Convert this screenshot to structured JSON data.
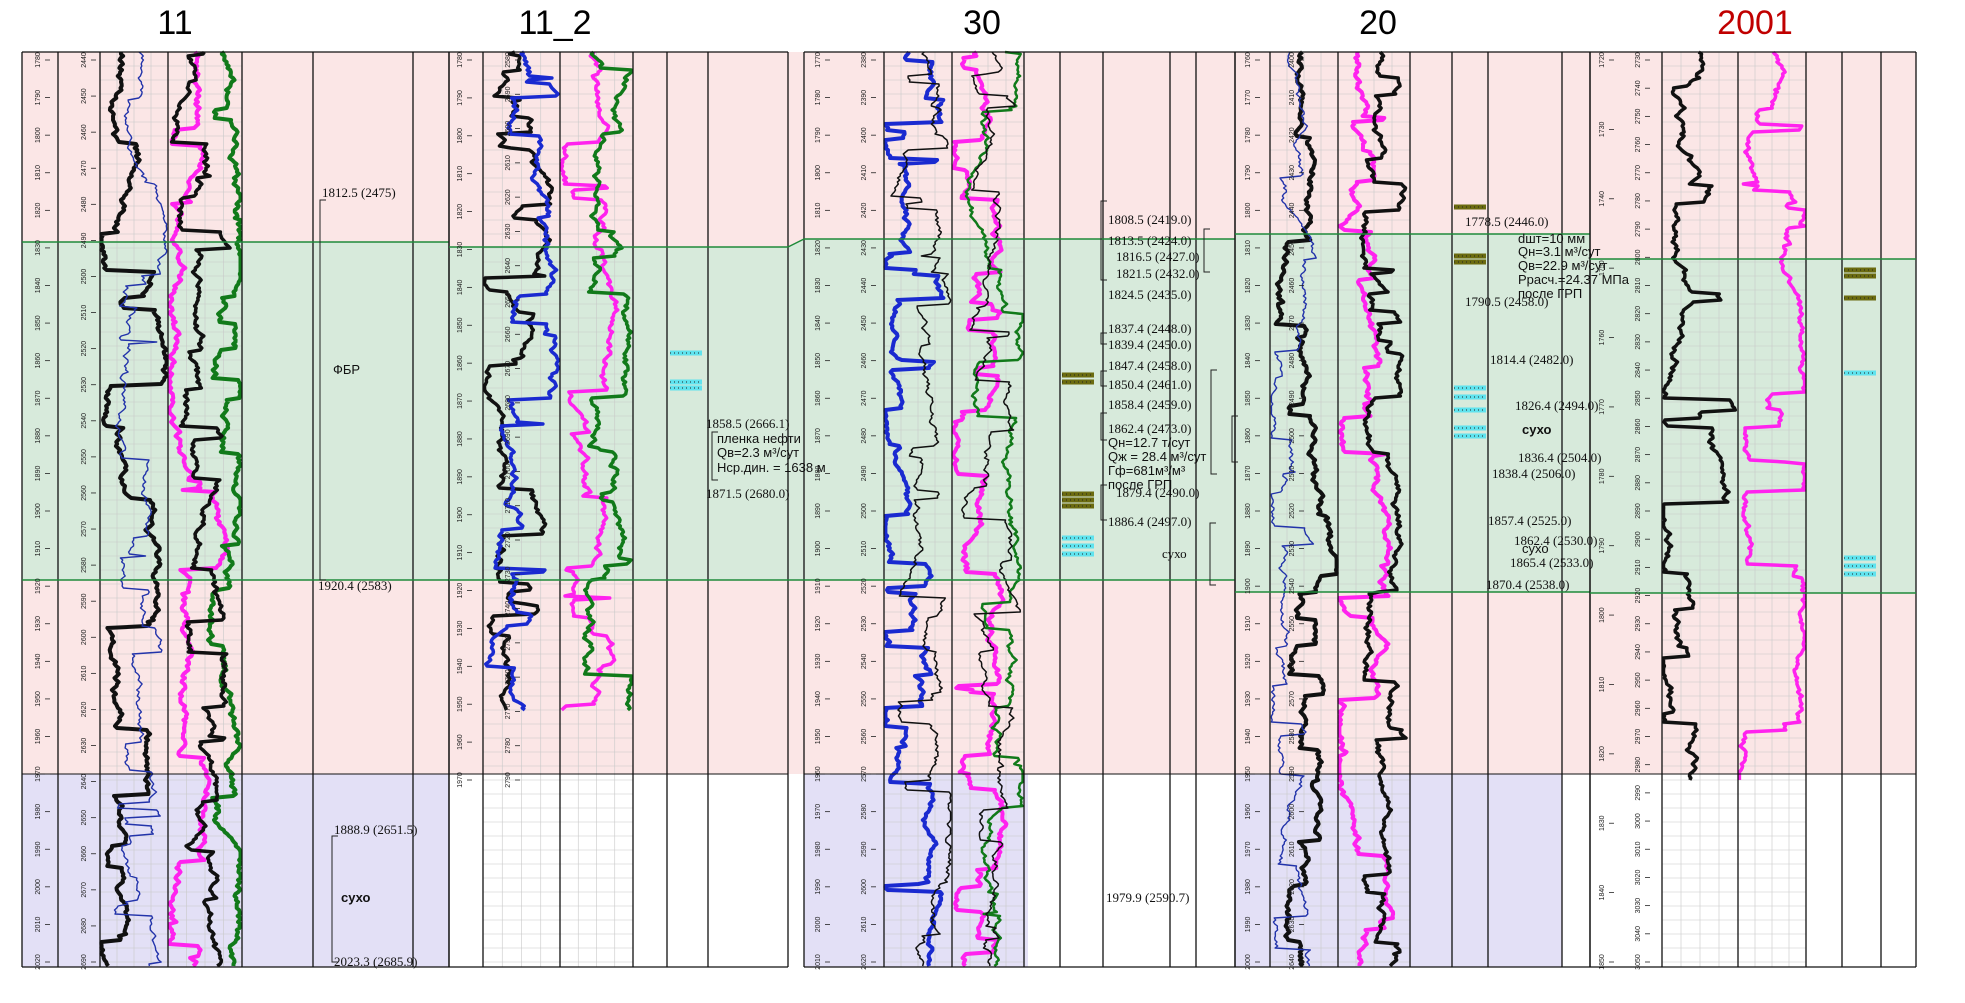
{
  "colors": {
    "upper_zone": "#fbe6e6",
    "reservoir_zone": "#d7eadb",
    "lower_zone": "#e3e0f6",
    "boundary": "#1f8a3a",
    "title_highlight": "#c00000",
    "perf_oil": "#6b6b10",
    "perf_water": "#5fe3ee"
  },
  "wells": [
    {
      "name": "11",
      "abs_ticks": [
        1780,
        1790,
        1800,
        1810,
        1820,
        1830,
        1840,
        1850,
        1860,
        1870,
        1880,
        1890,
        1900,
        1910,
        1920,
        1930,
        1940,
        1950,
        1960,
        1970,
        1980,
        1990,
        2000,
        2010,
        2020
      ],
      "md_ticks": [
        2440,
        2450,
        2460,
        2470,
        2480,
        2490,
        2500,
        2510,
        2520,
        2530,
        2540,
        2550,
        2560,
        2570,
        2580,
        2590,
        2600,
        2610,
        2620,
        2630,
        2640,
        2650,
        2660,
        2670,
        2680,
        2690
      ],
      "annotations": [
        "1812.5 (2475)",
        "ФБР",
        "1920.4 (2583)",
        "1888.9 (2651.5)",
        "сухо",
        "2023.3 (2685.9)"
      ]
    },
    {
      "name": "11_2",
      "abs_ticks": [
        1780,
        1790,
        1800,
        1810,
        1820,
        1830,
        1840,
        1850,
        1860,
        1870,
        1880,
        1890,
        1900,
        1910,
        1920,
        1930,
        1940,
        1950,
        1960,
        1970
      ],
      "md_ticks": [
        2580,
        2590,
        2600,
        2610,
        2620,
        2630,
        2640,
        2650,
        2660,
        2670,
        2680,
        2690,
        2700,
        2710,
        2720,
        2730,
        2740,
        2750,
        2760,
        2770,
        2780,
        2790
      ],
      "annotations": [
        "1858.5 (2666.1)",
        "пленка нефти",
        "Qв=2.3 м³/сут",
        "Нср.дин. = 1638 м",
        "1871.5 (2680.0)"
      ]
    },
    {
      "name": "30",
      "abs_ticks": [
        1770,
        1780,
        1790,
        1800,
        1810,
        1820,
        1830,
        1840,
        1850,
        1860,
        1870,
        1880,
        1890,
        1900,
        1910,
        1920,
        1930,
        1940,
        1950,
        1960,
        1970,
        1980,
        1990,
        2000,
        2010
      ],
      "md_ticks": [
        2380,
        2390,
        2400,
        2410,
        2420,
        2430,
        2440,
        2450,
        2460,
        2470,
        2480,
        2490,
        2500,
        2510,
        2520,
        2530,
        2540,
        2550,
        2560,
        2570,
        2580,
        2590,
        2600,
        2610,
        2620
      ],
      "annotations": [
        "1808.5 (2419.0)",
        "1813.5 (2424.0)",
        "1816.5 (2427.0)",
        "1821.5 (2432.0)",
        "1824.5 (2435.0)",
        "1837.4 (2448.0)",
        "1839.4 (2450.0)",
        "1847.4 (2458.0)",
        "1850.4 (2461.0)",
        "1858.4 (2459.0)",
        "1862.4 (2473.0)",
        "Qн=12.7 т/сут",
        "Qж = 28.4 м³/сут",
        "Гф=681м³/м³",
        "после ГРП",
        "1879.4 (2490.0)",
        "1886.4 (2497.0)",
        "сухо",
        "1979.9 (2590.7)"
      ]
    },
    {
      "name": "20",
      "abs_ticks": [
        1760,
        1770,
        1780,
        1790,
        1800,
        1810,
        1820,
        1830,
        1840,
        1850,
        1860,
        1870,
        1880,
        1890,
        1900,
        1910,
        1920,
        1930,
        1940,
        1950,
        1960,
        1970,
        1980,
        1990,
        2000
      ],
      "md_ticks": [
        2400,
        2410,
        2420,
        2430,
        2440,
        2450,
        2460,
        2470,
        2480,
        2490,
        2500,
        2510,
        2520,
        2530,
        2540,
        2550,
        2560,
        2570,
        2580,
        2590,
        2600,
        2610,
        2620,
        2630,
        2640
      ],
      "annotations": [
        "1778.5 (2446.0)",
        "dшт=10 мм",
        "Qн=3.1 м³/сут",
        "Qв=22.9 м³/сут",
        "Ррасч.=24.37 МПа",
        "после ГРП",
        "1790.5 (2458.0)",
        "1814.4 (2482.0)",
        "1826.4 (2494.0)",
        "сухо",
        "1836.4 (2504.0)",
        "1838.4 (2506.0)",
        "1857.4 (2525.0)",
        "1862.4 (2530.0)",
        "сухо",
        "1865.4 (2533.0)",
        "1870.4 (2538.0)"
      ]
    },
    {
      "name": "2001",
      "abs_ticks": [
        1720,
        1730,
        1740,
        1750,
        1760,
        1770,
        1780,
        1790,
        1800,
        1810,
        1820,
        1830,
        1840,
        1850
      ],
      "md_ticks": [
        2730,
        2740,
        2750,
        2760,
        2770,
        2780,
        2790,
        2800,
        2810,
        2820,
        2830,
        2840,
        2850,
        2860,
        2870,
        2880,
        2890,
        2900,
        2910,
        2920,
        2930,
        2940,
        2950,
        2960,
        2970,
        2980,
        2990,
        3000,
        3010,
        3020,
        3030,
        3040,
        3050
      ]
    }
  ]
}
